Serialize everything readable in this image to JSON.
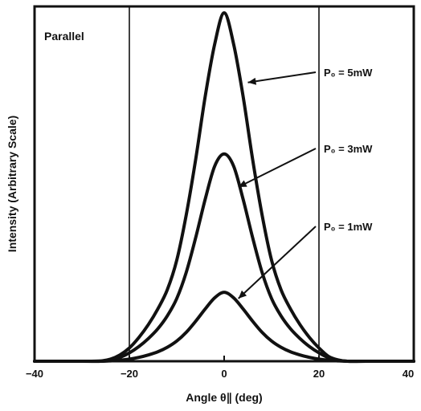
{
  "chart_data": {
    "type": "line",
    "panel_label": "Parallel",
    "xlabel": "Angle θ∥ (deg)",
    "ylabel": "Intensity (Arbitrary Scale)",
    "xlim": [
      -40,
      40
    ],
    "xticks": [
      -40,
      -20,
      0,
      20,
      40
    ],
    "ylim": [
      0,
      1
    ],
    "y_ticks_printed": false,
    "grid": {
      "vertical_lines_at": [
        -20,
        20
      ],
      "horizontal": false
    },
    "series": [
      {
        "name": "P₀ = 5mW",
        "x": [
          -40,
          -30,
          -26,
          -24,
          -22,
          -20,
          -18,
          -16,
          -14,
          -12,
          -10,
          -8,
          -6,
          -4,
          -2,
          0,
          2,
          4,
          6,
          8,
          10,
          12,
          14,
          16,
          18,
          20,
          22,
          24,
          26,
          30,
          40
        ],
        "y": [
          0,
          0,
          0.001,
          0.006,
          0.018,
          0.038,
          0.068,
          0.105,
          0.15,
          0.205,
          0.29,
          0.42,
          0.58,
          0.76,
          0.91,
          1.0,
          0.91,
          0.76,
          0.58,
          0.42,
          0.29,
          0.205,
          0.15,
          0.105,
          0.068,
          0.038,
          0.014,
          0.004,
          0.0,
          0,
          0
        ]
      },
      {
        "name": "P₀ = 3mW",
        "x": [
          -40,
          -30,
          -26,
          -24,
          -22,
          -20,
          -18,
          -16,
          -14,
          -12,
          -10,
          -8,
          -6,
          -4,
          -2,
          0,
          2,
          4,
          6,
          8,
          10,
          12,
          14,
          16,
          18,
          20,
          22,
          24,
          26,
          30,
          40
        ],
        "y": [
          0,
          0,
          0.0,
          0.003,
          0.011,
          0.024,
          0.042,
          0.065,
          0.093,
          0.13,
          0.18,
          0.255,
          0.355,
          0.465,
          0.56,
          0.595,
          0.56,
          0.465,
          0.355,
          0.255,
          0.18,
          0.13,
          0.093,
          0.065,
          0.042,
          0.024,
          0.01,
          0.003,
          0.0,
          0,
          0
        ]
      },
      {
        "name": "P₀ = 1mW",
        "x": [
          -40,
          -30,
          -26,
          -24,
          -22,
          -20,
          -18,
          -16,
          -14,
          -12,
          -10,
          -8,
          -6,
          -4,
          -2,
          0,
          2,
          4,
          6,
          8,
          10,
          12,
          14,
          16,
          18,
          20,
          22,
          24,
          26,
          30,
          40
        ],
        "y": [
          0,
          0,
          0.0,
          0.001,
          0.003,
          0.006,
          0.011,
          0.018,
          0.027,
          0.04,
          0.058,
          0.083,
          0.115,
          0.15,
          0.182,
          0.198,
          0.182,
          0.15,
          0.115,
          0.083,
          0.058,
          0.04,
          0.027,
          0.018,
          0.011,
          0.006,
          0.003,
          0.001,
          0.0,
          0,
          0
        ]
      }
    ],
    "annotations": [
      {
        "text": "P₀ = 5mW",
        "series": 0,
        "points_to": {
          "x": 5,
          "y": 0.8
        }
      },
      {
        "text": "P₀ = 3mW",
        "series": 1,
        "points_to": {
          "x": 3,
          "y": 0.5
        }
      },
      {
        "text": "P₀ = 1mW",
        "series": 2,
        "points_to": {
          "x": 3,
          "y": 0.18
        }
      }
    ]
  }
}
